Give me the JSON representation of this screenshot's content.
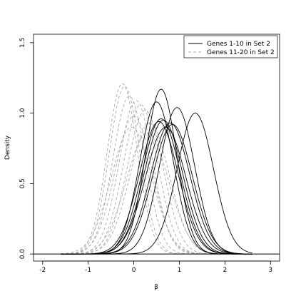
{
  "chart_data": {
    "type": "line",
    "title": "",
    "xlabel": "β",
    "ylabel": "Density",
    "xlim": [
      -2.2,
      3.2
    ],
    "ylim": [
      -0.05,
      1.56
    ],
    "xticks": [
      "-2",
      "-1",
      "0",
      "1",
      "2",
      "3"
    ],
    "yticks": [
      "0.0",
      "0.5",
      "1.0",
      "1.5"
    ],
    "grid": false,
    "legend_position": "top-right",
    "baseline_y": 0,
    "series": [
      {
        "name": "Genes 1-10 in Set 2",
        "color": "#000000",
        "line_style": "solid",
        "curves": [
          {
            "mean": 0.6,
            "peak": 1.17
          },
          {
            "mean": 0.5,
            "peak": 1.08
          },
          {
            "mean": 0.95,
            "peak": 1.04
          },
          {
            "mean": 1.35,
            "peak": 1.0
          },
          {
            "mean": 0.6,
            "peak": 0.96
          },
          {
            "mean": 0.65,
            "peak": 0.95
          },
          {
            "mean": 0.55,
            "peak": 0.94
          },
          {
            "mean": 0.8,
            "peak": 0.93
          },
          {
            "mean": 0.85,
            "peak": 0.92
          },
          {
            "mean": 0.7,
            "peak": 0.9
          }
        ]
      },
      {
        "name": "Genes 11-20 in Set 2",
        "color": "#aaaaaa",
        "line_style": "dashed",
        "curves": [
          {
            "mean": -0.25,
            "peak": 1.21
          },
          {
            "mean": -0.2,
            "peak": 1.19
          },
          {
            "mean": -0.1,
            "peak": 1.12
          },
          {
            "mean": 0.05,
            "peak": 1.09
          },
          {
            "mean": 0.15,
            "peak": 1.06
          },
          {
            "mean": 0.25,
            "peak": 1.02
          },
          {
            "mean": 0.0,
            "peak": 0.98
          },
          {
            "mean": 0.35,
            "peak": 0.93
          },
          {
            "mean": -0.05,
            "peak": 0.9
          },
          {
            "mean": 0.3,
            "peak": 0.86
          }
        ]
      }
    ]
  }
}
